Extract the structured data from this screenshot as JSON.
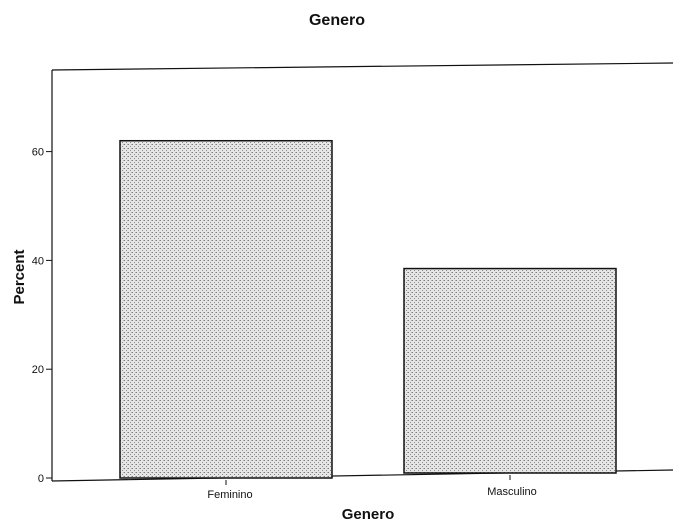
{
  "chart_data": {
    "type": "bar",
    "title": "Genero",
    "xlabel": "Genero",
    "ylabel": "Percent",
    "categories": [
      "Feminino",
      "Masculino"
    ],
    "values": [
      62,
      38.5
    ],
    "ylim": [
      0,
      75
    ],
    "yticks": [
      0,
      20,
      40,
      60
    ],
    "ytick_labels": [
      "0",
      "20",
      "40",
      "60"
    ],
    "grid": false,
    "bar_fill": "#d9d9d9",
    "bar_stroke": "#111111"
  }
}
